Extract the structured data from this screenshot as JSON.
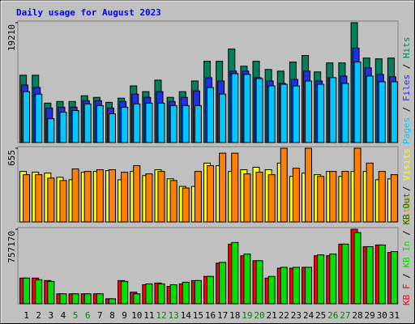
{
  "title": "Daily usage for August 2023",
  "legend_separator": " / ",
  "category_colors": [
    "#000000",
    "#000000",
    "#000000",
    "#000000",
    "#008000",
    "#008000",
    "#000000",
    "#000000",
    "#000000",
    "#000000",
    "#000000",
    "#008000",
    "#008000",
    "#000000",
    "#000000",
    "#000000",
    "#000000",
    "#000000",
    "#008000",
    "#008000",
    "#000000",
    "#000000",
    "#000000",
    "#000000",
    "#000000",
    "#008000",
    "#008000",
    "#000000",
    "#000000",
    "#000000",
    "#000000"
  ],
  "chart_data": [
    {
      "type": "bar",
      "categories": [
        "1",
        "2",
        "3",
        "4",
        "5",
        "6",
        "7",
        "8",
        "9",
        "10",
        "11",
        "12",
        "13",
        "14",
        "15",
        "16",
        "17",
        "18",
        "19",
        "20",
        "21",
        "22",
        "23",
        "24",
        "25",
        "26",
        "27",
        "28",
        "29",
        "30",
        "31"
      ],
      "ylim": [
        0,
        19210
      ],
      "yticks": [
        19210
      ],
      "series": [
        {
          "name": "Hits",
          "color": "#00805c",
          "values": [
            10790,
            10790,
            6320,
            6580,
            6580,
            7500,
            7240,
            6450,
            7110,
            9080,
            8160,
            10000,
            7240,
            8160,
            9870,
            13030,
            13030,
            15000,
            12240,
            13030,
            11710,
            11450,
            12900,
            13950,
            11320,
            12770,
            12770,
            19210,
            13550,
            13420,
            13550
          ]
        },
        {
          "name": "Files",
          "color": "#2030e8",
          "values": [
            9210,
            8820,
            5530,
            5660,
            5660,
            6710,
            6710,
            5530,
            6580,
            7760,
            7240,
            8160,
            6580,
            7240,
            8290,
            10400,
            9870,
            11450,
            11450,
            10400,
            9870,
            9480,
            10130,
            11450,
            9870,
            10400,
            10660,
            15130,
            11980,
            10920,
            10530
          ]
        },
        {
          "name": "Pages",
          "color": "#00c8ff",
          "values": [
            8160,
            7760,
            3820,
            4870,
            5130,
            6190,
            5920,
            4610,
            5660,
            6190,
            6320,
            6320,
            5920,
            5920,
            5920,
            8820,
            7760,
            11050,
            10920,
            10260,
            9080,
            9340,
            9080,
            9870,
            9340,
            10400,
            9480,
            12900,
            10660,
            9740,
            9740
          ]
        }
      ]
    },
    {
      "type": "bar",
      "categories": [
        "1",
        "2",
        "3",
        "4",
        "5",
        "6",
        "7",
        "8",
        "9",
        "10",
        "11",
        "12",
        "13",
        "14",
        "15",
        "16",
        "17",
        "18",
        "19",
        "20",
        "21",
        "22",
        "23",
        "24",
        "25",
        "26",
        "27",
        "28",
        "29",
        "30",
        "31"
      ],
      "ylim": [
        0,
        655
      ],
      "yticks": [
        655
      ],
      "series": [
        {
          "name": "Visits",
          "color": "#ffff00",
          "values": [
            449,
            442,
            434,
            397,
            375,
            442,
            449,
            456,
            375,
            449,
            412,
            464,
            383,
            316,
            316,
            523,
            500,
            449,
            464,
            486,
            464,
            523,
            405,
            434,
            420,
            449,
            405,
            449,
            449,
            375,
            383
          ]
        },
        {
          "name": "Sites",
          "color": "#ff8000",
          "values": [
            420,
            420,
            390,
            368,
            471,
            449,
            464,
            464,
            442,
            500,
            427,
            449,
            368,
            302,
            449,
            500,
            611,
            611,
            427,
            442,
            420,
            655,
            478,
            655,
            405,
            449,
            449,
            655,
            523,
            449,
            420
          ]
        }
      ]
    },
    {
      "type": "bar",
      "categories": [
        "1",
        "2",
        "3",
        "4",
        "5",
        "6",
        "7",
        "8",
        "9",
        "10",
        "11",
        "12",
        "13",
        "14",
        "15",
        "16",
        "17",
        "18",
        "19",
        "20",
        "21",
        "22",
        "23",
        "24",
        "25",
        "26",
        "27",
        "28",
        "29",
        "30",
        "31"
      ],
      "ylim": [
        0,
        757170
      ],
      "yticks": [
        757170
      ],
      "series": [
        {
          "name": "KB Out",
          "color": "#008000",
          "values": [
            0,
            0,
            0,
            0,
            0,
            0,
            0,
            0,
            0,
            0,
            0,
            0,
            0,
            0,
            0,
            0,
            0,
            0,
            0,
            0,
            0,
            0,
            0,
            0,
            0,
            0,
            0,
            0,
            0,
            0,
            0
          ]
        },
        {
          "name": "KB In",
          "color": "#00e000",
          "values": [
            260800,
            243980,
            227150,
            100960,
            100960,
            100960,
            100960,
            50480,
            227150,
            100960,
            201910,
            201910,
            193500,
            218740,
            235560,
            277630,
            420650,
            622560,
            504780,
            437480,
            277630,
            370170,
            370170,
            370170,
            496370,
            504780,
            605740,
            723520,
            580500,
            597320,
            530020
          ]
        },
        {
          "name": "KB F",
          "color": "#ff0000",
          "values": [
            260800,
            260800,
            235560,
            100960,
            100960,
            100960,
            100960,
            50480,
            235560,
            117780,
            193500,
            210330,
            176670,
            201910,
            235560,
            277630,
            412240,
            605740,
            487950,
            437480,
            260800,
            361760,
            361760,
            370170,
            487950,
            487950,
            605740,
            757170,
            580500,
            597320,
            521610
          ]
        }
      ]
    }
  ]
}
